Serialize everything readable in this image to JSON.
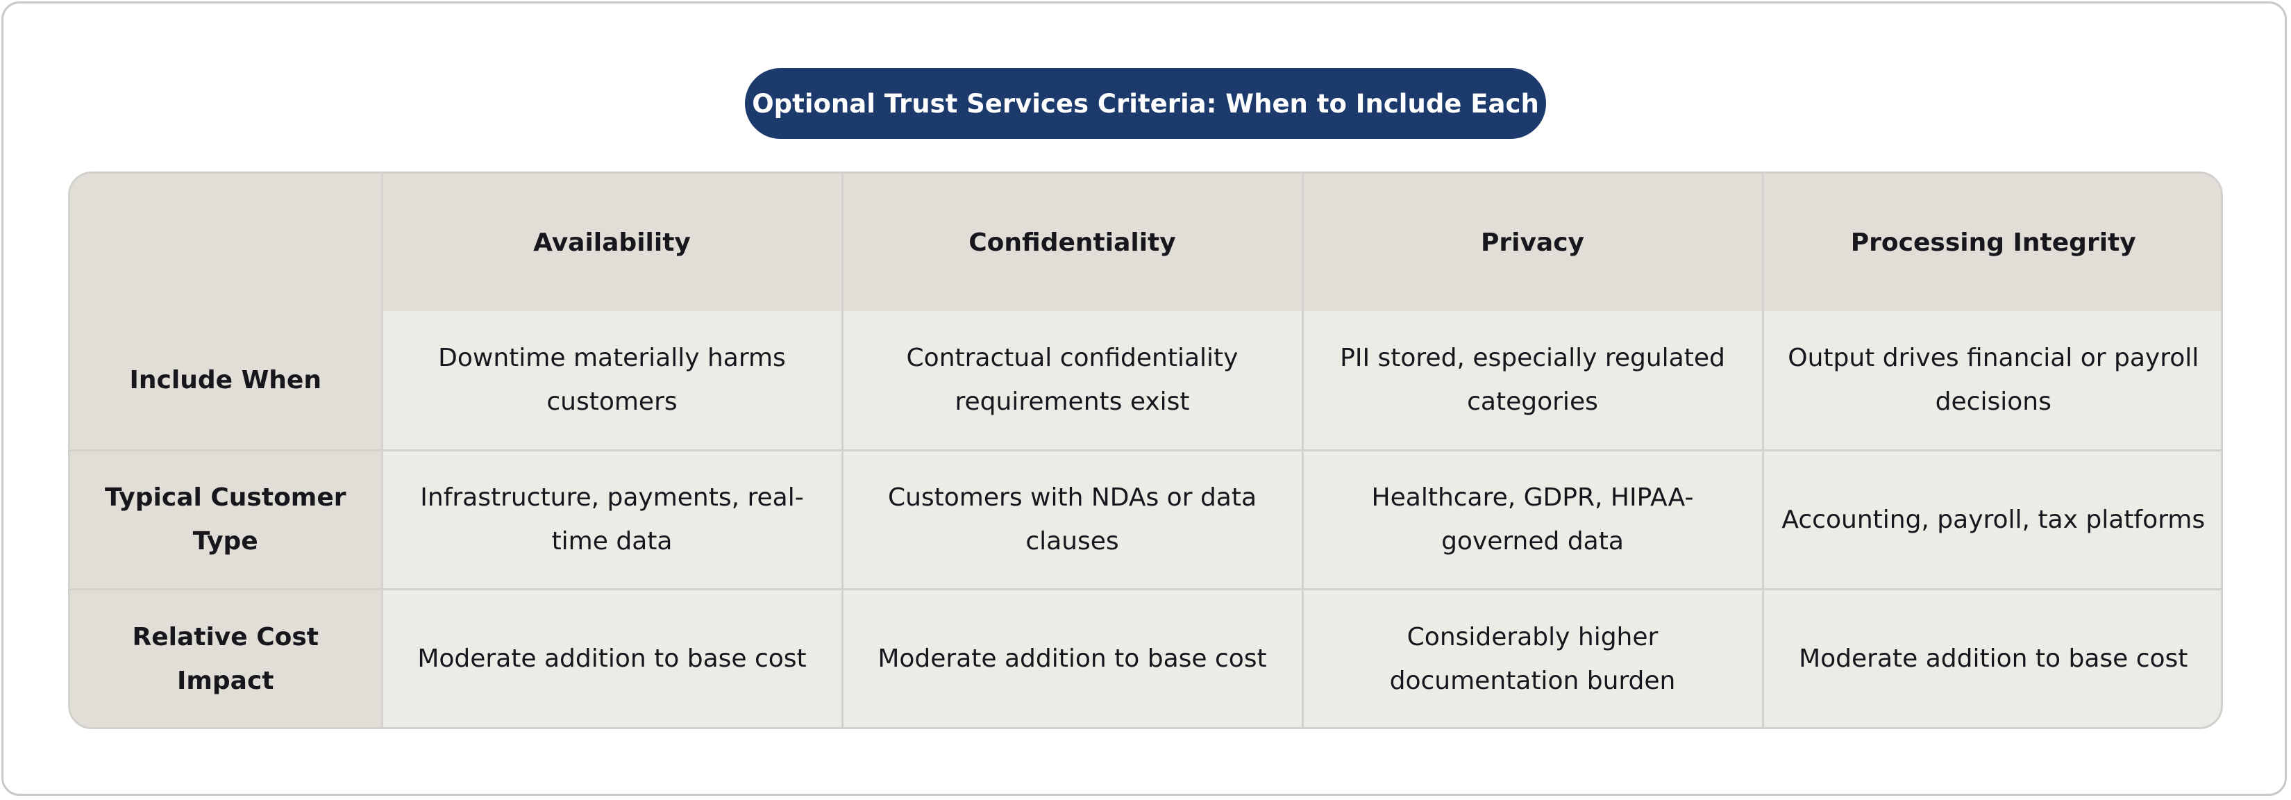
{
  "title": "Optional Trust Services Criteria: When to Include Each",
  "columns": [
    "Availability",
    "Confidentiality",
    "Privacy",
    "Processing Integrity"
  ],
  "rows": [
    {
      "label": "Include When",
      "cells": [
        "Downtime materially harms customers",
        "Contractual confidentiality requirements exist",
        "PII stored, especially regulated categories",
        "Output drives financial or payroll decisions"
      ]
    },
    {
      "label": "Typical Customer Type",
      "cells": [
        "Infrastructure, payments, real-time data",
        "Customers with NDAs or data clauses",
        "Healthcare, GDPR, HIPAA-governed data",
        "Accounting, payroll, tax platforms"
      ]
    },
    {
      "label": "Relative Cost Impact",
      "cells": [
        "Moderate addition to base cost",
        "Moderate addition to base cost",
        "Considerably higher documentation burden",
        "Moderate addition to base cost"
      ]
    }
  ],
  "colors": {
    "title_background": "#1c3a6c",
    "header_background": "#e1ded8",
    "cell_background": "#ecebe5",
    "border": "#d4d2cc"
  }
}
